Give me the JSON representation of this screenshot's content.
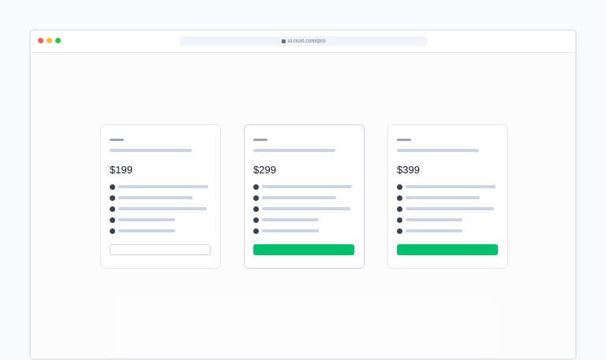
{
  "browser": {
    "url": "ui.nuxt.com/pro",
    "traffic_lights": [
      "#ff5f57",
      "#febc2e",
      "#28c840"
    ],
    "lock_icon": "lock-icon"
  },
  "plans": [
    {
      "price": "$199",
      "highlighted": false,
      "button": "outline",
      "features": [
        114,
        94,
        112,
        72,
        72
      ]
    },
    {
      "price": "$299",
      "highlighted": true,
      "button": "filled",
      "features": [
        114,
        94,
        112,
        72,
        72
      ]
    },
    {
      "price": "$399",
      "highlighted": false,
      "button": "filled",
      "features": [
        114,
        94,
        112,
        72,
        72
      ]
    }
  ],
  "colors": {
    "accent": "#00c16a",
    "bullet": "#374151",
    "placeholder": "#cbd5e1"
  }
}
